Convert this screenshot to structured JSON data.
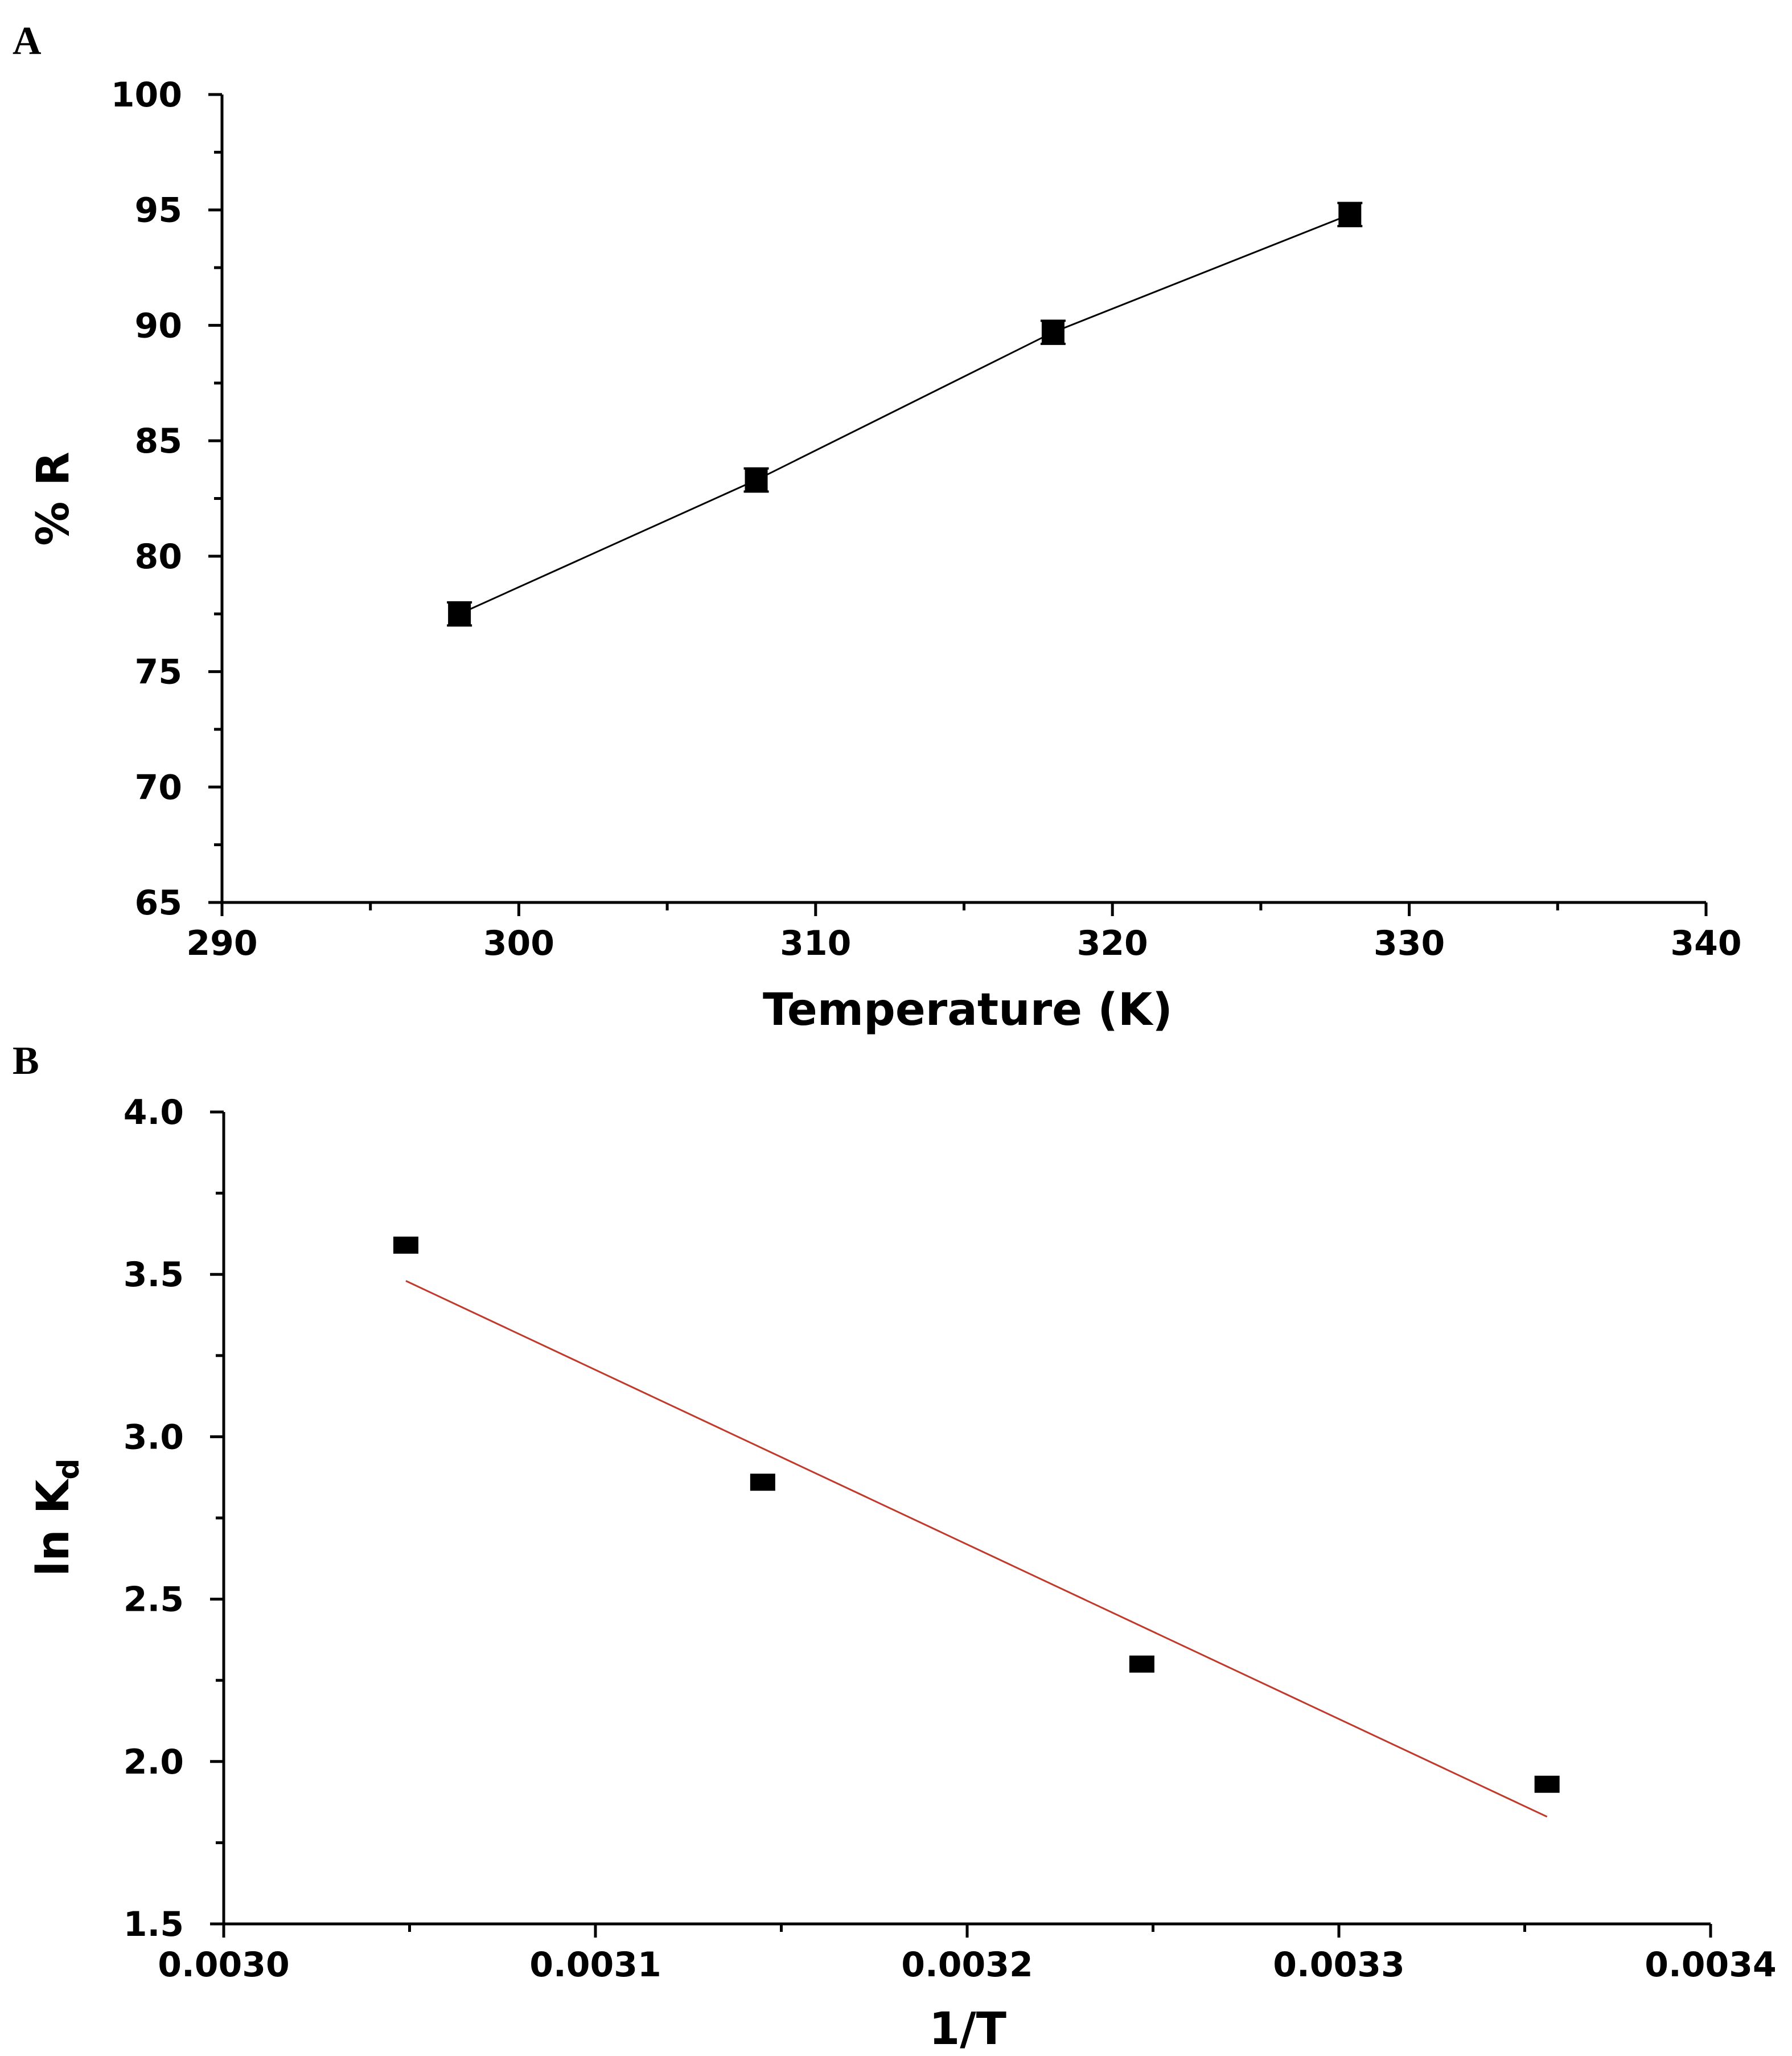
{
  "chart_data": [
    {
      "panel": "A",
      "type": "line",
      "xlabel": "Temperature (K)",
      "ylabel": "% R",
      "xlim": [
        290,
        340
      ],
      "ylim": [
        65,
        100
      ],
      "xticks": [
        290,
        300,
        310,
        320,
        330,
        340
      ],
      "yticks": [
        65,
        70,
        75,
        80,
        85,
        90,
        95,
        100
      ],
      "xtick_labels": [
        "290",
        "300",
        "310",
        "320",
        "330",
        "340"
      ],
      "ytick_labels": [
        "65",
        "70",
        "75",
        "80",
        "85",
        "90",
        "95",
        "100"
      ],
      "series": [
        {
          "name": "%R",
          "x": [
            298,
            308,
            318,
            328
          ],
          "y": [
            77.5,
            83.3,
            89.7,
            94.8
          ],
          "error": [
            0.5,
            0.5,
            0.5,
            0.5
          ],
          "marker": "square",
          "line_color": "#000000"
        }
      ]
    },
    {
      "panel": "B",
      "type": "scatter",
      "xlabel": "1/T",
      "ylabel_main": "ln K",
      "ylabel_sub": "d",
      "xlim": [
        0.003,
        0.0034
      ],
      "ylim": [
        1.5,
        4.0
      ],
      "xticks": [
        0.003,
        0.0031,
        0.0032,
        0.0033,
        0.0034
      ],
      "yticks": [
        1.5,
        2.0,
        2.5,
        3.0,
        3.5,
        4.0
      ],
      "xtick_labels": [
        "0.0030",
        "0.0031",
        "0.0032",
        "0.0033",
        "0.0034"
      ],
      "ytick_labels": [
        "1.5",
        "2.0",
        "2.5",
        "3.0",
        "3.5",
        "4.0"
      ],
      "series": [
        {
          "name": "ln Kd",
          "x": [
            0.003049,
            0.003145,
            0.003247,
            0.003356
          ],
          "y": [
            3.59,
            2.86,
            2.3,
            1.93
          ],
          "marker": "square"
        }
      ],
      "fit_line": {
        "x": [
          0.003049,
          0.003356
        ],
        "y": [
          3.48,
          1.83
        ],
        "color": "#c0392b"
      }
    }
  ]
}
